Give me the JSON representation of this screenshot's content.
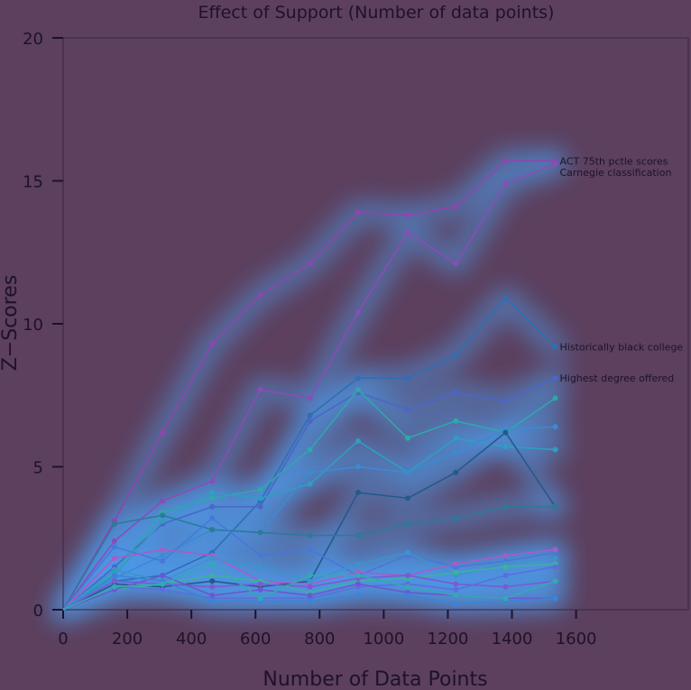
{
  "chart_data": {
    "type": "line",
    "title": "Effect of Support (Number of data points)",
    "xlabel": "Number of Data Points",
    "ylabel": "Z−Scores",
    "xlim": [
      0,
      1950
    ],
    "ylim": [
      0,
      20
    ],
    "xticks": [
      0,
      200,
      400,
      600,
      800,
      1000,
      1200,
      1400,
      1600
    ],
    "yticks": [
      0,
      5,
      10,
      15,
      20
    ],
    "x": [
      0,
      160,
      310,
      465,
      615,
      770,
      920,
      1075,
      1225,
      1380,
      1535
    ],
    "series": [
      {
        "color": "#8e45b0",
        "values": [
          0,
          3.1,
          6.2,
          9.3,
          11.0,
          12.1,
          13.9,
          13.8,
          14.1,
          15.7,
          15.7
        ]
      },
      {
        "color": "#8a4cb8",
        "values": [
          0,
          2.4,
          3.8,
          4.5,
          7.7,
          7.4,
          10.4,
          13.2,
          12.1,
          14.9,
          15.6
        ]
      },
      {
        "color": "#2e6fb5",
        "values": [
          0,
          1.0,
          1.2,
          2.0,
          3.8,
          6.8,
          8.1,
          8.1,
          8.9,
          10.9,
          9.2
        ]
      },
      {
        "color": "#4a66c8",
        "values": [
          0,
          1.5,
          3.0,
          3.6,
          3.6,
          6.6,
          7.6,
          7.0,
          7.6,
          7.3,
          8.1
        ]
      },
      {
        "color": "#2ea8a8",
        "values": [
          0,
          1.3,
          3.4,
          3.9,
          4.2,
          5.6,
          7.7,
          6.0,
          6.6,
          6.2,
          7.4
        ]
      },
      {
        "color": "#2f9ec0",
        "values": [
          0,
          1.2,
          3.1,
          4.1,
          3.9,
          4.4,
          5.9,
          4.8,
          6.0,
          5.7,
          5.6
        ]
      },
      {
        "color": "#3a8bd0",
        "values": [
          0,
          1.1,
          1.9,
          2.8,
          2.7,
          4.8,
          5.0,
          4.8,
          5.5,
          6.3,
          6.4
        ]
      },
      {
        "color": "#235a8c",
        "values": [
          0,
          0.9,
          0.8,
          1.0,
          0.8,
          1.0,
          4.1,
          3.9,
          4.8,
          6.2,
          3.6
        ]
      },
      {
        "color": "#2c7a98",
        "values": [
          0,
          3.0,
          3.3,
          2.8,
          2.7,
          2.6,
          2.6,
          3.0,
          3.2,
          3.6,
          3.6
        ]
      },
      {
        "color": "#4778d8",
        "values": [
          0,
          2.2,
          1.7,
          3.2,
          1.9,
          2.1,
          1.2,
          1.9,
          1.5,
          1.7,
          2.0
        ]
      },
      {
        "color": "#a85cc8",
        "values": [
          0,
          1.8,
          2.1,
          1.9,
          1.0,
          0.9,
          1.3,
          1.2,
          1.6,
          1.9,
          2.1
        ]
      },
      {
        "color": "#3c94c8",
        "values": [
          0,
          1.4,
          1.0,
          1.8,
          1.5,
          1.0,
          1.6,
          2.0,
          1.2,
          1.6,
          1.8
        ]
      },
      {
        "color": "#3fb0a0",
        "values": [
          0,
          0.7,
          0.9,
          1.2,
          1.0,
          0.6,
          1.0,
          1.1,
          1.3,
          1.5,
          1.6
        ]
      },
      {
        "color": "#7a5ad0",
        "values": [
          0,
          1.0,
          0.9,
          0.8,
          0.9,
          0.8,
          1.1,
          1.2,
          0.9,
          0.8,
          1.0
        ]
      },
      {
        "color": "#5a6ee0",
        "values": [
          0,
          0.8,
          0.7,
          0.4,
          0.4,
          0.4,
          0.8,
          0.9,
          0.7,
          1.2,
          1.5
        ]
      },
      {
        "color": "#6b58d0",
        "values": [
          0,
          0.7,
          1.2,
          0.5,
          0.7,
          0.5,
          0.9,
          0.6,
          0.5,
          0.4,
          0.4
        ]
      },
      {
        "color": "#3a84d8",
        "values": [
          0,
          1.2,
          1.0,
          0.3,
          0.3,
          0.3,
          0.5,
          0.5,
          0.2,
          0.3,
          0.4
        ]
      },
      {
        "color": "#35a8b0",
        "values": [
          0,
          0.8,
          0.9,
          1.6,
          0.4,
          1.2,
          1.2,
          0.8,
          0.5,
          0.4,
          1.0
        ]
      }
    ],
    "annotations": [
      {
        "text": "ACT 75th pctle scores",
        "x": 1535,
        "y": 15.7
      },
      {
        "text": "Carnegie classification",
        "x": 1535,
        "y": 15.3
      },
      {
        "text": "Historically black college",
        "x": 1535,
        "y": 9.2
      },
      {
        "text": "Highest degree offered",
        "x": 1535,
        "y": 8.1
      }
    ],
    "grid": false
  }
}
